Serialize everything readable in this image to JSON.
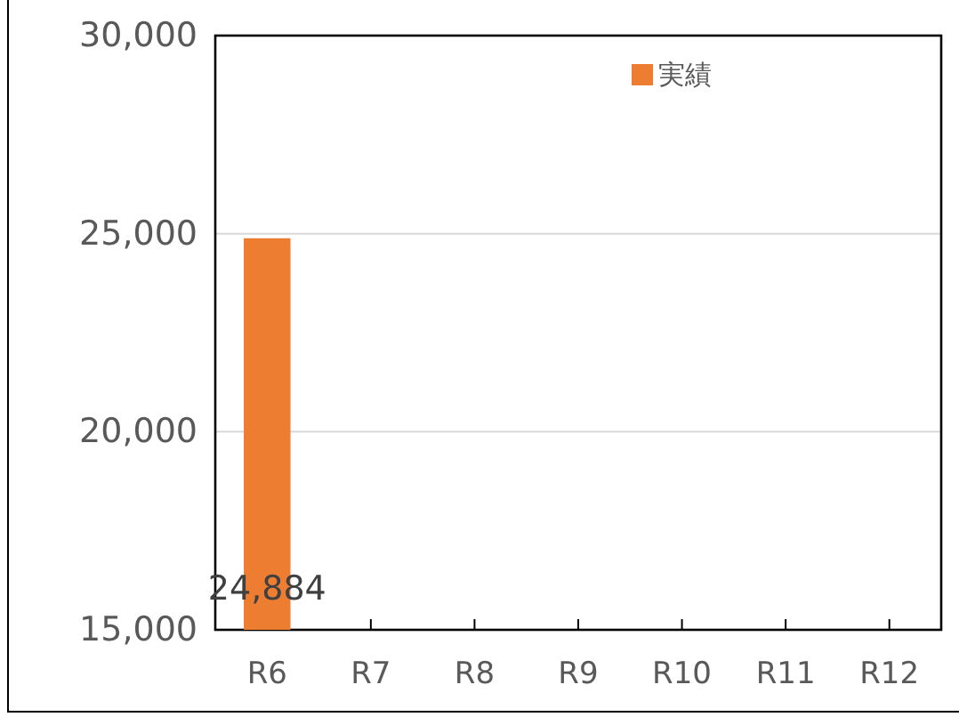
{
  "chart_data": {
    "type": "bar",
    "categories": [
      "R6",
      "R7",
      "R8",
      "R9",
      "R10",
      "R11",
      "R12"
    ],
    "series": [
      {
        "name": "実績",
        "color": "#ed7d31",
        "values": [
          24884,
          null,
          null,
          null,
          null,
          null,
          null
        ],
        "value_labels": [
          "24,884",
          null,
          null,
          null,
          null,
          null,
          null
        ]
      }
    ],
    "ylim": [
      15000,
      30000
    ],
    "yticks": [
      {
        "value": 15000,
        "label": "15,000"
      },
      {
        "value": 20000,
        "label": "20,000"
      },
      {
        "value": 25000,
        "label": "25,000"
      },
      {
        "value": 30000,
        "label": "30,000"
      }
    ],
    "grid": "y",
    "legend": "top"
  }
}
